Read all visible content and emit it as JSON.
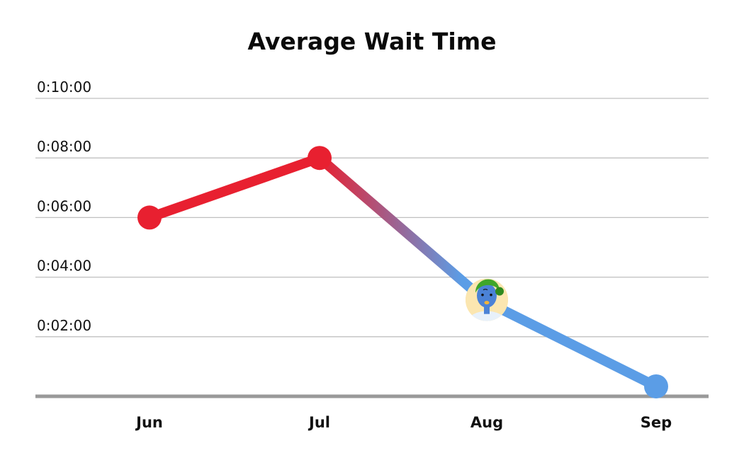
{
  "chart_data": {
    "type": "line",
    "title": "Average Wait Time",
    "categories": [
      "Jun",
      "Jul",
      "Aug",
      "Sep"
    ],
    "series": [
      {
        "values": [
          360,
          480,
          190,
          20
        ]
      }
    ],
    "value_format": "h:mm:ss",
    "yticks": [
      {
        "value": 600,
        "label": "0:10:00"
      },
      {
        "value": 480,
        "label": "0:08:00"
      },
      {
        "value": 360,
        "label": "0:06:00"
      },
      {
        "value": 240,
        "label": "0:04:00"
      },
      {
        "value": 120,
        "label": "0:02:00"
      }
    ],
    "ylim": [
      0,
      600
    ],
    "grid": true,
    "colors": {
      "start": "#e82030",
      "end": "#5b9de6",
      "grid": "#c0c0c0",
      "baseline": "#999999"
    },
    "marker_icon": "avatar-icon"
  }
}
